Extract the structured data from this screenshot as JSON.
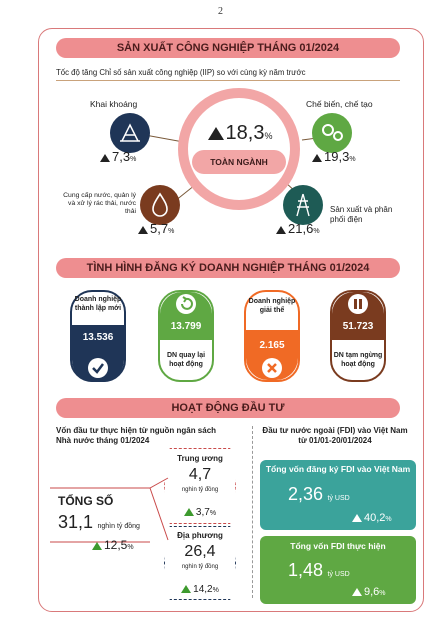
{
  "page_number": "2",
  "section1": {
    "title": "SẢN XUẤT CÔNG NGHIỆP THÁNG 01/2024",
    "subtitle": "Tốc độ tăng Chỉ số sản xuất công nghiệp (IIP) so với cùng kỳ năm trước",
    "center": {
      "value": "18,3",
      "unit": "%",
      "label": "TOÀN NGÀNH"
    },
    "mining": {
      "label": "Khai khoáng",
      "value": "7,3",
      "unit": "%"
    },
    "manufacturing": {
      "label": "Chế biến, chế tạo",
      "value": "19,3",
      "unit": "%"
    },
    "water": {
      "label": "Cung cấp nước, quản lý và xử lý rác thải, nước thải",
      "value": "5,7",
      "unit": "%"
    },
    "power": {
      "label": "Sản xuất và phân phối điện",
      "value": "21,6",
      "unit": "%"
    }
  },
  "section2": {
    "title": "TÌNH HÌNH ĐĂNG KÝ DOANH NGHIỆP THÁNG 01/2024",
    "new": {
      "label": "Doanh nghiệp thành lập mới",
      "value": "13.536"
    },
    "returned": {
      "label": "DN quay lại hoạt động",
      "value": "13.799"
    },
    "dissolved": {
      "label": "Doanh nghiệp giải thể",
      "value": "2.165"
    },
    "suspended": {
      "label": "DN tạm ngừng hoạt động",
      "value": "51.723"
    }
  },
  "section3": {
    "title": "HOẠT ĐỘNG ĐẦU TƯ",
    "left_heading": "Vốn đầu tư thực hiện từ nguồn ngân sách Nhà nước tháng 01/2024",
    "total": {
      "label": "TỔNG SỐ",
      "value": "31,1",
      "unit": "nghìn tỷ đồng",
      "growth": "12,5",
      "growth_unit": "%"
    },
    "central": {
      "label": "Trung ương",
      "value": "4,7",
      "unit": "nghìn tỷ đồng",
      "growth": "3,7",
      "growth_unit": "%"
    },
    "local": {
      "label": "Địa phương",
      "value": "26,4",
      "unit": "nghìn tỷ đồng",
      "growth": "14,2",
      "growth_unit": "%"
    },
    "right_heading": "Đầu tư nước ngoài (FDI) vào Việt Nam từ 01/01-20/01/2024",
    "fdi_registered": {
      "label": "Tổng vốn đăng ký FDI vào Việt Nam",
      "value": "2,36",
      "unit": "tỷ USD",
      "growth": "40,2",
      "growth_unit": "%"
    },
    "fdi_disbursed": {
      "label": "Tổng vốn FDI thực hiện",
      "value": "1,48",
      "unit": "tỷ USD",
      "growth": "9,6",
      "growth_unit": "%"
    }
  },
  "colors": {
    "banner": "#ee8e90",
    "navy": "#1f3557",
    "green": "#5fa843",
    "teal": "#1e5b55",
    "brown": "#7a3b1f",
    "orange": "#f06a25",
    "pink": "#f2a6a6",
    "fdi_teal": "#3ba39b"
  }
}
